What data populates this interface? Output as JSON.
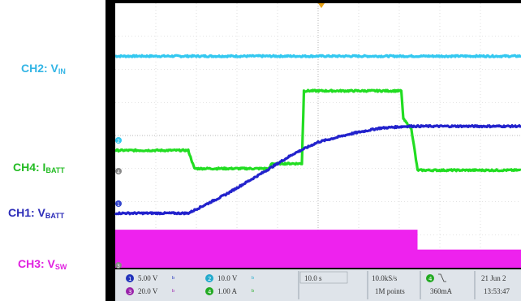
{
  "labels": {
    "ch2": {
      "name": "CH2: V",
      "sub": "IN",
      "color": "#33B5E5"
    },
    "ch4": {
      "name": "CH4: I",
      "sub": "BATT",
      "color": "#22BB22"
    },
    "ch1": {
      "name": "CH1: V",
      "sub": "BATT",
      "color": "#2B2BB8"
    },
    "ch3": {
      "name": "CH3: V",
      "sub": "SW",
      "color": "#E020E0"
    }
  },
  "footer": {
    "ch1_num": "1",
    "ch1_scale": "5.00 V",
    "ch2_num": "2",
    "ch2_scale": "10.0 V",
    "ch3_num": "3",
    "ch3_scale": "20.0 V",
    "ch4_num": "4",
    "ch4_scale": "1.00 A",
    "timebase": "10.0 s",
    "sample_rate": "10.0kS/s",
    "record_length": "1M points",
    "trig_num": "4",
    "trig_level": "360mA",
    "date": "21 Jun 2",
    "time": "13:53:47"
  },
  "chart_data": {
    "type": "line",
    "title": "",
    "xlabel": "",
    "ylabel": "",
    "timebase": "10.0 s/div",
    "grid": true,
    "x_divisions": 10,
    "y_divisions": 8,
    "series": [
      {
        "name": "CH2: VIN",
        "unit": "div",
        "color": "#33C8F0",
        "points": [
          [
            0,
            6.4
          ],
          [
            10,
            6.4
          ]
        ],
        "noise": true
      },
      {
        "name": "CH4: IBATT",
        "unit": "div",
        "color": "#22DD22",
        "points": [
          [
            0.0,
            3.55
          ],
          [
            1.8,
            3.55
          ],
          [
            1.95,
            3.0
          ],
          [
            3.8,
            3.0
          ],
          [
            3.85,
            3.15
          ],
          [
            4.6,
            3.15
          ],
          [
            4.65,
            5.35
          ],
          [
            7.05,
            5.35
          ],
          [
            7.1,
            4.5
          ],
          [
            7.3,
            4.2
          ],
          [
            7.45,
            2.95
          ],
          [
            10,
            2.95
          ]
        ],
        "noise": true
      },
      {
        "name": "CH1: VBATT",
        "unit": "div",
        "color": "#2222CC",
        "points": [
          [
            0.0,
            1.65
          ],
          [
            1.8,
            1.65
          ],
          [
            2.7,
            2.2
          ],
          [
            3.6,
            2.85
          ],
          [
            4.4,
            3.45
          ],
          [
            5.0,
            3.8
          ],
          [
            5.8,
            4.05
          ],
          [
            6.5,
            4.22
          ],
          [
            7.2,
            4.28
          ],
          [
            10,
            4.28
          ]
        ],
        "noise": true
      },
      {
        "name": "CH3: VSW",
        "unit": "div",
        "color": "#EE22EE",
        "points": [
          [
            0.0,
            1.15
          ],
          [
            7.45,
            1.15
          ],
          [
            7.45,
            0.55
          ],
          [
            10,
            0.55
          ]
        ],
        "fill_to": 0.0
      }
    ]
  }
}
